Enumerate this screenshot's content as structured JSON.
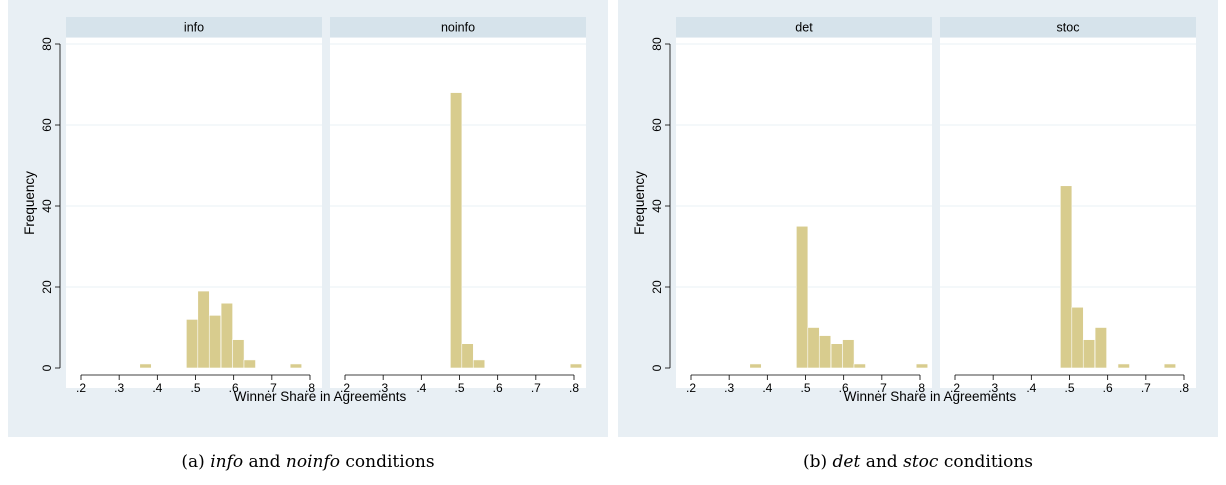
{
  "figures": [
    {
      "id": "a",
      "caption": {
        "label": "(a)",
        "cond1": "info",
        "and": "and",
        "cond2": "noinfo",
        "tail": "conditions"
      }
    },
    {
      "id": "b",
      "caption": {
        "label": "(b)",
        "cond1": "det",
        "and": "and",
        "cond2": "stoc",
        "tail": "conditions"
      }
    }
  ],
  "chart_data": [
    {
      "type": "bar",
      "xlabel": "Winner Share in Agreements",
      "ylabel": "Frequency",
      "xlim": [
        0.2,
        0.8
      ],
      "ylim": [
        0,
        80
      ],
      "xticks": [
        ".2",
        ".3",
        ".4",
        ".5",
        ".6",
        ".7",
        ".8"
      ],
      "yticks": [
        "0",
        "20",
        "40",
        "60",
        "80"
      ],
      "bin_width": 0.0303,
      "bar_color": "#d8cc8e",
      "panels": [
        {
          "title": "info",
          "bars": [
            {
              "x0": 0.354,
              "y": 1
            },
            {
              "x0": 0.476,
              "y": 12
            },
            {
              "x0": 0.506,
              "y": 19
            },
            {
              "x0": 0.536,
              "y": 13
            },
            {
              "x0": 0.567,
              "y": 16
            },
            {
              "x0": 0.597,
              "y": 7
            },
            {
              "x0": 0.627,
              "y": 2
            },
            {
              "x0": 0.748,
              "y": 1
            }
          ]
        },
        {
          "title": "noinfo",
          "bars": [
            {
              "x0": 0.476,
              "y": 68
            },
            {
              "x0": 0.506,
              "y": 6
            },
            {
              "x0": 0.536,
              "y": 2
            },
            {
              "x0": 0.79,
              "y": 1
            }
          ]
        }
      ]
    },
    {
      "type": "bar",
      "xlabel": "Winner Share in Agreements",
      "ylabel": "Frequency",
      "xlim": [
        0.2,
        0.8
      ],
      "ylim": [
        0,
        80
      ],
      "xticks": [
        ".2",
        ".3",
        ".4",
        ".5",
        ".6",
        ".7",
        ".8"
      ],
      "yticks": [
        "0",
        "20",
        "40",
        "60",
        "80"
      ],
      "bin_width": 0.0303,
      "bar_color": "#d8cc8e",
      "panels": [
        {
          "title": "det",
          "bars": [
            {
              "x0": 0.354,
              "y": 1
            },
            {
              "x0": 0.476,
              "y": 35
            },
            {
              "x0": 0.506,
              "y": 10
            },
            {
              "x0": 0.536,
              "y": 8
            },
            {
              "x0": 0.567,
              "y": 6
            },
            {
              "x0": 0.597,
              "y": 7
            },
            {
              "x0": 0.627,
              "y": 1
            },
            {
              "x0": 0.79,
              "y": 1
            }
          ]
        },
        {
          "title": "stoc",
          "bars": [
            {
              "x0": 0.476,
              "y": 45
            },
            {
              "x0": 0.506,
              "y": 15
            },
            {
              "x0": 0.536,
              "y": 7
            },
            {
              "x0": 0.567,
              "y": 10
            },
            {
              "x0": 0.627,
              "y": 1
            },
            {
              "x0": 0.748,
              "y": 1
            }
          ]
        }
      ]
    }
  ]
}
